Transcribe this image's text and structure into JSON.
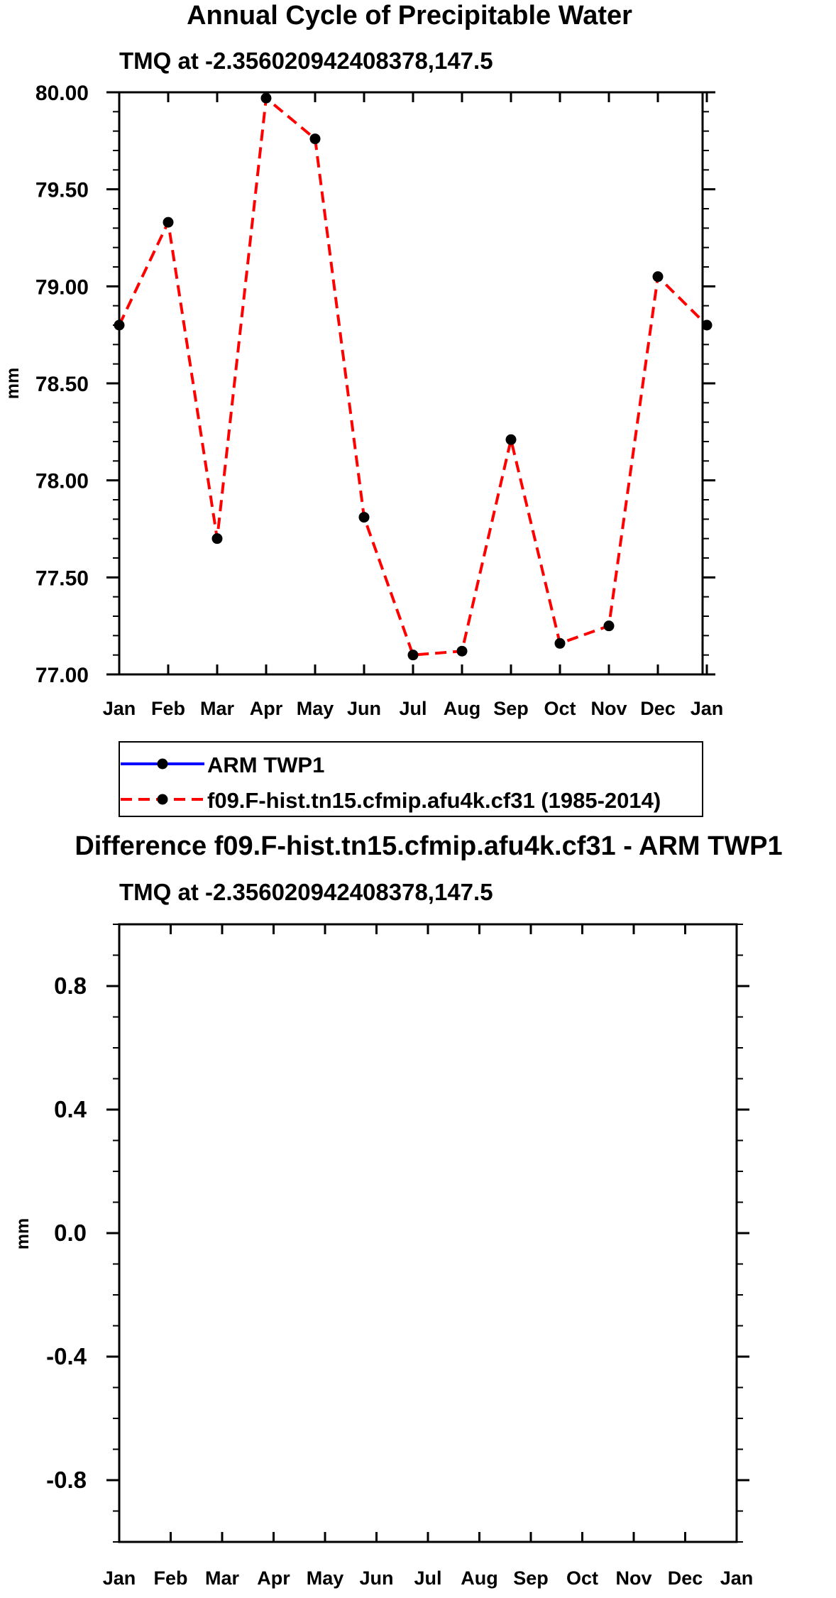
{
  "chart_data": [
    {
      "type": "line",
      "title": "Annual Cycle of Precipitable Water",
      "subtitle": "TMQ at -2.356020942408378,147.5",
      "ylabel": "mm",
      "xlabel": "",
      "ylim": [
        77.0,
        80.0
      ],
      "yticks": [
        77.0,
        77.5,
        78.0,
        78.5,
        79.0,
        79.5,
        80.0
      ],
      "ytick_labels": [
        "77.00",
        "77.50",
        "78.00",
        "78.50",
        "79.00",
        "79.50",
        "80.00"
      ],
      "x_labels": [
        "Jan",
        "Feb",
        "Mar",
        "Apr",
        "May",
        "Jun",
        "Jul",
        "Aug",
        "Sep",
        "Oct",
        "Nov",
        "Dec",
        "Jan"
      ],
      "grid": false,
      "legend_position": "below",
      "series": [
        {
          "name": "ARM TWP1",
          "color": "#0000ff",
          "dash": "solid",
          "values": []
        },
        {
          "name": "f09.F-hist.tn15.cfmip.afu4k.cf31 (1985-2014)",
          "color": "#ff0000",
          "dash": "dashed",
          "values": [
            78.8,
            79.33,
            77.7,
            79.97,
            79.76,
            77.81,
            77.1,
            77.12,
            78.21,
            77.16,
            77.25,
            79.05,
            78.8
          ]
        }
      ]
    },
    {
      "type": "line",
      "title": "Difference f09.F-hist.tn15.cfmip.afu4k.cf31 - ARM TWP1",
      "subtitle": "TMQ at -2.356020942408378,147.5",
      "ylabel": "mm",
      "xlabel": "",
      "ylim": [
        -1.0,
        1.0
      ],
      "yticks": [
        -0.8,
        -0.4,
        0.0,
        0.4,
        0.8
      ],
      "ytick_labels": [
        "-0.8",
        "-0.4",
        "0.0",
        "0.4",
        "0.8"
      ],
      "x_labels": [
        "Jan",
        "Feb",
        "Mar",
        "Apr",
        "May",
        "Jun",
        "Jul",
        "Aug",
        "Sep",
        "Oct",
        "Nov",
        "Dec",
        "Jan"
      ],
      "grid": false,
      "series": []
    }
  ]
}
